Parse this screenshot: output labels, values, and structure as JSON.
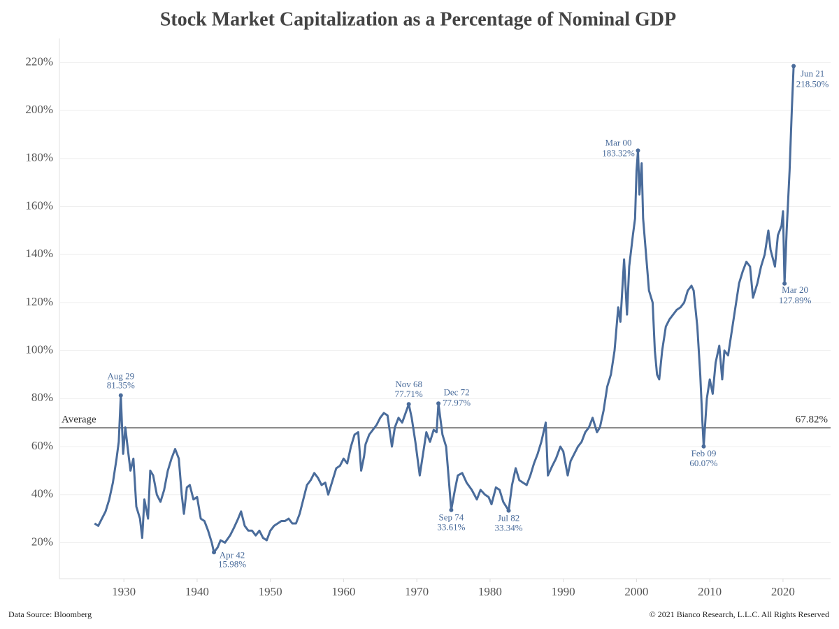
{
  "chart_data": {
    "type": "line",
    "title": "Stock Market Capitalization as a Percentage of Nominal GDP",
    "source": "Data Source: Bloomberg",
    "copyright": "© 2021 Bianco Research, L.L.C. All Rights Reserved",
    "color": "#4a6c9b",
    "grid": true,
    "xlim": [
      1921.2,
      2026.5
    ],
    "ylim": [
      5,
      230
    ],
    "xticks": [
      1930,
      1940,
      1950,
      1960,
      1970,
      1980,
      1990,
      2000,
      2010,
      2020
    ],
    "yticks": [
      {
        "value": 20,
        "label": "20%"
      },
      {
        "value": 40,
        "label": "40%"
      },
      {
        "value": 60,
        "label": "60%"
      },
      {
        "value": 80,
        "label": "80%"
      },
      {
        "value": 100,
        "label": "100%"
      },
      {
        "value": 120,
        "label": "120%"
      },
      {
        "value": 140,
        "label": "140%"
      },
      {
        "value": 160,
        "label": "160%"
      },
      {
        "value": 180,
        "label": "180%"
      },
      {
        "value": 200,
        "label": "200%"
      },
      {
        "value": 220,
        "label": "220%"
      }
    ],
    "average": {
      "label": "Average",
      "value": 67.82,
      "value_label": "67.82%"
    },
    "x": [
      1926.0,
      1926.5,
      1927,
      1927.5,
      1928,
      1928.5,
      1929,
      1929.3,
      1929.58,
      1929.9,
      1930.2,
      1930.5,
      1930.9,
      1931.3,
      1931.7,
      1932.2,
      1932.5,
      1932.8,
      1933.3,
      1933.6,
      1934,
      1934.5,
      1935,
      1935.5,
      1936,
      1936.5,
      1937,
      1937.5,
      1937.9,
      1938.2,
      1938.6,
      1939,
      1939.5,
      1940,
      1940.5,
      1941,
      1941.5,
      1942.0,
      1942.3,
      1942.8,
      1943.2,
      1943.8,
      1944.5,
      1945,
      1945.6,
      1946.0,
      1946.5,
      1947,
      1947.5,
      1948,
      1948.5,
      1949,
      1949.5,
      1950,
      1950.5,
      1951,
      1951.5,
      1952,
      1952.5,
      1953,
      1953.5,
      1954,
      1954.5,
      1955,
      1955.5,
      1956,
      1956.5,
      1957,
      1957.5,
      1957.9,
      1958.5,
      1959,
      1959.5,
      1960,
      1960.5,
      1961,
      1961.5,
      1962,
      1962.4,
      1962.8,
      1963,
      1963.5,
      1964,
      1964.5,
      1965,
      1965.5,
      1966,
      1966.6,
      1967,
      1967.5,
      1968,
      1968.9,
      1969.3,
      1969.8,
      1970.4,
      1970.9,
      1971.3,
      1971.8,
      1972.3,
      1972.7,
      1972.95,
      1973.5,
      1974,
      1974.4,
      1974.7,
      1975.2,
      1975.6,
      1976.2,
      1976.8,
      1977.5,
      1978.2,
      1978.7,
      1979.3,
      1979.8,
      1980.2,
      1980.8,
      1981.3,
      1981.8,
      1982.54,
      1983,
      1983.5,
      1984,
      1984.5,
      1985,
      1985.5,
      1986,
      1986.5,
      1987,
      1987.6,
      1987.9,
      1988.5,
      1989,
      1989.6,
      1990,
      1990.6,
      1991,
      1991.5,
      1992,
      1992.5,
      1993,
      1993.5,
      1994,
      1994.6,
      1995,
      1995.5,
      1996,
      1996.5,
      1997,
      1997.5,
      1997.8,
      1998.3,
      1998.7,
      1999,
      1999.5,
      1999.8,
      2000.0,
      2000.2,
      2000.4,
      2000.7,
      2000.9,
      2001.3,
      2001.7,
      2002.2,
      2002.5,
      2002.8,
      2003.1,
      2003.5,
      2004,
      2004.5,
      2005,
      2005.5,
      2006,
      2006.5,
      2007,
      2007.5,
      2007.8,
      2008.3,
      2008.7,
      2009.0,
      2009.17,
      2009.6,
      2010,
      2010.4,
      2010.8,
      2011.3,
      2011.7,
      2012,
      2012.5,
      2013,
      2013.5,
      2014,
      2014.5,
      2015,
      2015.5,
      2015.9,
      2016.5,
      2017,
      2017.5,
      2018,
      2018.3,
      2018.9,
      2019.3,
      2019.8,
      2020.0,
      2020.21,
      2020.5,
      2020.9,
      2021.2,
      2021.45
    ],
    "values": [
      28,
      27,
      30,
      33,
      38,
      45,
      55,
      62,
      81.35,
      57,
      68,
      60,
      50,
      55,
      35,
      30,
      22,
      38,
      30,
      50,
      48,
      40,
      37,
      42,
      50,
      55,
      59,
      55,
      40,
      32,
      43,
      44,
      38,
      39,
      30,
      29,
      25,
      20,
      15.98,
      18,
      21,
      20,
      23,
      26,
      30,
      33,
      27,
      25,
      25,
      23,
      25,
      22,
      21,
      25,
      27,
      28,
      29,
      29,
      30,
      28,
      28,
      32,
      38,
      44,
      46,
      49,
      47,
      44,
      45,
      40,
      46,
      51,
      52,
      55,
      53,
      60,
      65,
      66,
      50,
      56,
      61,
      65,
      67,
      69,
      72,
      74,
      73,
      60,
      68,
      72,
      70,
      77.71,
      72,
      62,
      48,
      58,
      66,
      62,
      67,
      66,
      77.97,
      65,
      60,
      45,
      33.61,
      42,
      48,
      49,
      45,
      42,
      38,
      42,
      40,
      39,
      36,
      43,
      42,
      37,
      33.34,
      44,
      51,
      46,
      45,
      44,
      48,
      53,
      57,
      62,
      70,
      48,
      52,
      55,
      60,
      58,
      48,
      54,
      57,
      60,
      62,
      66,
      68,
      72,
      66,
      68,
      75,
      85,
      90,
      100,
      118,
      112,
      138,
      115,
      135,
      148,
      155,
      175,
      183.32,
      165,
      178,
      155,
      140,
      125,
      120,
      100,
      90,
      88,
      100,
      110,
      113,
      115,
      117,
      118,
      120,
      125,
      127,
      125,
      110,
      90,
      70,
      60.07,
      80,
      88,
      82,
      95,
      102,
      88,
      100,
      98,
      108,
      118,
      128,
      133,
      137,
      135,
      122,
      128,
      135,
      140,
      150,
      142,
      135,
      148,
      152,
      158,
      127.89,
      150,
      175,
      200,
      218.5
    ],
    "annotations": [
      {
        "x": 1929.58,
        "value": 81.35,
        "date_label": "Aug 29",
        "value_label": "81.35%"
      },
      {
        "x": 1942.3,
        "value": 15.98,
        "date_label": "Apr 42",
        "value_label": "15.98%"
      },
      {
        "x": 1968.9,
        "value": 77.71,
        "date_label": "Nov 68",
        "value_label": "77.71%"
      },
      {
        "x": 1972.95,
        "value": 77.97,
        "date_label": "Dec 72",
        "value_label": "77.97%"
      },
      {
        "x": 1974.7,
        "value": 33.61,
        "date_label": "Sep 74",
        "value_label": "33.61%"
      },
      {
        "x": 1982.54,
        "value": 33.34,
        "date_label": "Jul 82",
        "value_label": "33.34%"
      },
      {
        "x": 2000.2,
        "value": 183.32,
        "date_label": "Mar 00",
        "value_label": "183.32%"
      },
      {
        "x": 2009.17,
        "value": 60.07,
        "date_label": "Feb 09",
        "value_label": "60.07%"
      },
      {
        "x": 2020.21,
        "value": 127.89,
        "date_label": "Mar 20",
        "value_label": "127.89%"
      },
      {
        "x": 2021.45,
        "value": 218.5,
        "date_label": "Jun 21",
        "value_label": "218.50%"
      }
    ]
  }
}
